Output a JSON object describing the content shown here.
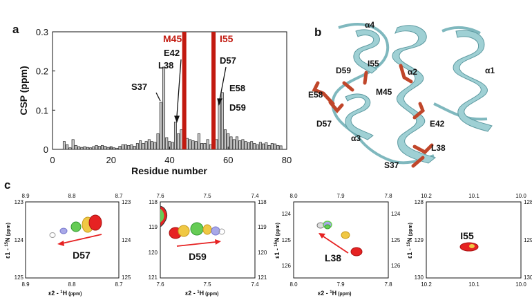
{
  "panels": {
    "a": "a",
    "b": "b",
    "c": "c"
  },
  "colors": {
    "bar_fill": "#c8c8c8",
    "bar_stroke": "#222222",
    "mark_red": "#c21a10",
    "ribbon": "#9fd0d4",
    "ribbon_dark": "#5d9aa1",
    "sidechain": "#c0462a"
  },
  "chart_data": [
    {
      "type": "bar",
      "panel": "a",
      "xlabel": "Residue number",
      "ylabel": "CSP (ppm)",
      "xlim": [
        0,
        80
      ],
      "ylim": [
        0,
        0.3
      ],
      "xticks": [
        "0",
        "20",
        "40",
        "60",
        "80"
      ],
      "yticks": [
        "0",
        "0.1",
        "0.2",
        "0.3"
      ],
      "residues": [
        4,
        5,
        6,
        7,
        8,
        9,
        10,
        11,
        12,
        13,
        14,
        15,
        16,
        17,
        18,
        19,
        20,
        21,
        22,
        23,
        24,
        25,
        26,
        27,
        28,
        29,
        30,
        31,
        32,
        33,
        34,
        35,
        36,
        37,
        38,
        39,
        40,
        41,
        42,
        43,
        44,
        46,
        47,
        48,
        49,
        50,
        51,
        52,
        53,
        54,
        56,
        57,
        58,
        59,
        60,
        61,
        62,
        63,
        64,
        65,
        66,
        67,
        68,
        69,
        70,
        71,
        72,
        73,
        74,
        75,
        76,
        77,
        78
      ],
      "values": [
        0.02,
        0.012,
        0.004,
        0.025,
        0.01,
        0.007,
        0.005,
        0.007,
        0.005,
        0.004,
        0.007,
        0.01,
        0.008,
        0.01,
        0.008,
        0.005,
        0.007,
        0.004,
        0.003,
        0.008,
        0.012,
        0.012,
        0.01,
        0.012,
        0.008,
        0.015,
        0.022,
        0.015,
        0.02,
        0.025,
        0.02,
        0.018,
        0.04,
        0.12,
        0.21,
        0.03,
        0.02,
        0.018,
        0.07,
        0.04,
        0.05,
        0.028,
        0.025,
        0.022,
        0.02,
        0.04,
        0.015,
        0.015,
        0.025,
        0.012,
        0.025,
        0.12,
        0.145,
        0.05,
        0.04,
        0.032,
        0.025,
        0.032,
        0.022,
        0.025,
        0.02,
        0.017,
        0.02,
        0.015,
        0.012,
        0.018,
        0.014,
        0.017,
        0.01,
        0.015,
        0.014,
        0.01,
        0.009
      ],
      "markers": [
        {
          "label": "M45",
          "residue": 45
        },
        {
          "label": "I55",
          "residue": 55
        }
      ],
      "annotations": [
        {
          "label": "L38",
          "residue": 38
        },
        {
          "label": "S37",
          "residue": 37
        },
        {
          "label": "E42",
          "residue": 42
        },
        {
          "label": "D57",
          "residue": 57
        },
        {
          "label": "E58",
          "residue": 58
        },
        {
          "label": "D59",
          "residue": 59
        }
      ]
    },
    {
      "type": "scatter",
      "panel": "c",
      "title": "D57",
      "x_ticks": [
        "8.9",
        "8.8",
        "8.7"
      ],
      "y_ticks": [
        "123",
        "124",
        "125"
      ],
      "xlabel_main": "ε2 - ",
      "xlabel_iso": "1",
      "xlabel_nuc": "H",
      "xlabel_unit": "(ppm)",
      "ylabel_main": "ε1 - ",
      "ylabel_iso": "15",
      "ylabel_nuc": "N",
      "ylabel_unit": "(ppm)"
    },
    {
      "type": "scatter",
      "panel": "c",
      "title": "D59",
      "x_ticks": [
        "7.6",
        "7.5",
        "7.4"
      ],
      "y_ticks": [
        "118",
        "119",
        "120",
        "121"
      ],
      "xlabel_main": "ε2 - ",
      "xlabel_iso": "1",
      "xlabel_nuc": "H",
      "xlabel_unit": "(ppm)"
    },
    {
      "type": "scatter",
      "panel": "c",
      "title": "L38",
      "x_ticks": [
        "8.0",
        "7.9",
        "7.8"
      ],
      "y_ticks": [
        "124",
        "125",
        "126"
      ],
      "xlabel_main": "ε2 - ",
      "xlabel_iso": "1",
      "xlabel_nuc": "H",
      "xlabel_unit": "(ppm)",
      "ylabel_main": "ε1 - ",
      "ylabel_iso": "15",
      "ylabel_nuc": "N",
      "ylabel_unit": "(ppm)"
    },
    {
      "type": "scatter",
      "panel": "c",
      "title": "I55",
      "x_ticks": [
        "10.2",
        "10.1",
        "10.0"
      ],
      "y_ticks": [
        "128",
        "129",
        "130"
      ],
      "ylabel_main": "ε1 - ",
      "ylabel_iso": "15",
      "ylabel_nuc": "N",
      "ylabel_unit": "(ppm)"
    }
  ],
  "structure": {
    "helices": [
      "α4",
      "α2",
      "α1",
      "α3"
    ],
    "residues": [
      "E58",
      "D59",
      "I55",
      "M45",
      "D57",
      "E42",
      "L38",
      "S37"
    ]
  }
}
